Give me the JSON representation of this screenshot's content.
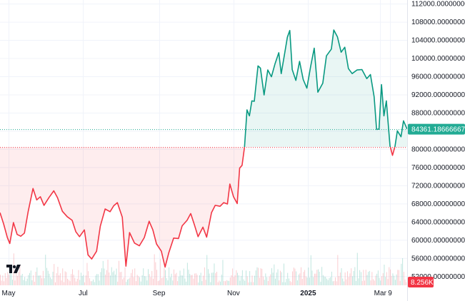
{
  "chart_data": {
    "type": "area",
    "style": "baseline",
    "baseline_value": 80420,
    "last_value": 84361.18666667,
    "last_value_label": "84361.18666667",
    "volume_label": "8.256K",
    "y_tick_labels": [
      "112000.00000000",
      "108000.00000000",
      "104000.00000000",
      "100000.00000000",
      "96000.00000000",
      "92000.00000000",
      "88000.00000000",
      "84000.00000000",
      "80000.00000000",
      "76000.00000000",
      "72000.00000000",
      "68000.00000000",
      "64000.00000000",
      "60000.00000000",
      "56000.00000000",
      "52000.00000000"
    ],
    "y_ticks": [
      112000,
      108000,
      104000,
      100000,
      96000,
      92000,
      88000,
      84000,
      80000,
      76000,
      72000,
      68000,
      64000,
      60000,
      56000,
      52000
    ],
    "ylim": [
      50000,
      112800
    ],
    "x_tick_labels": [
      {
        "label": "May",
        "date": "2024-05-01",
        "bold": false
      },
      {
        "label": "Jul",
        "date": "2024-07-01",
        "bold": false
      },
      {
        "label": "Sep",
        "date": "2024-09-01",
        "bold": false
      },
      {
        "label": "Nov",
        "date": "2024-11-01",
        "bold": false
      },
      {
        "label": "2025",
        "date": "2025-01-01",
        "bold": true
      },
      {
        "label": "Mar",
        "date": "2025-03-01",
        "bold": false
      },
      {
        "label": "9",
        "date": "2025-03-09",
        "bold": false
      }
    ],
    "xlim": [
      "2024-04-24",
      "2025-03-23"
    ],
    "series_points": [
      [
        "2024-04-24",
        66000
      ],
      [
        "2024-04-27",
        63500
      ],
      [
        "2024-04-30",
        60500
      ],
      [
        "2024-05-02",
        59200
      ],
      [
        "2024-05-05",
        63800
      ],
      [
        "2024-05-08",
        61200
      ],
      [
        "2024-05-11",
        60800
      ],
      [
        "2024-05-14",
        61500
      ],
      [
        "2024-05-17",
        66200
      ],
      [
        "2024-05-21",
        71300
      ],
      [
        "2024-05-24",
        68800
      ],
      [
        "2024-05-27",
        69500
      ],
      [
        "2024-05-30",
        67600
      ],
      [
        "2024-06-03",
        69300
      ],
      [
        "2024-06-07",
        70800
      ],
      [
        "2024-06-10",
        69300
      ],
      [
        "2024-06-14",
        66300
      ],
      [
        "2024-06-18",
        65100
      ],
      [
        "2024-06-22",
        64300
      ],
      [
        "2024-06-25",
        61800
      ],
      [
        "2024-06-28",
        60700
      ],
      [
        "2024-07-02",
        62200
      ],
      [
        "2024-07-05",
        56700
      ],
      [
        "2024-07-08",
        55800
      ],
      [
        "2024-07-12",
        57500
      ],
      [
        "2024-07-15",
        63000
      ],
      [
        "2024-07-19",
        66800
      ],
      [
        "2024-07-23",
        66200
      ],
      [
        "2024-07-26",
        67500
      ],
      [
        "2024-07-29",
        68200
      ],
      [
        "2024-08-02",
        65000
      ],
      [
        "2024-08-05",
        54200
      ],
      [
        "2024-08-08",
        61600
      ],
      [
        "2024-08-12",
        59300
      ],
      [
        "2024-08-16",
        58700
      ],
      [
        "2024-08-20",
        60500
      ],
      [
        "2024-08-24",
        64100
      ],
      [
        "2024-08-27",
        62200
      ],
      [
        "2024-08-30",
        59100
      ],
      [
        "2024-09-03",
        57500
      ],
      [
        "2024-09-06",
        54000
      ],
      [
        "2024-09-09",
        57100
      ],
      [
        "2024-09-13",
        60400
      ],
      [
        "2024-09-17",
        60300
      ],
      [
        "2024-09-20",
        63100
      ],
      [
        "2024-09-24",
        64300
      ],
      [
        "2024-09-27",
        65800
      ],
      [
        "2024-09-30",
        63300
      ],
      [
        "2024-10-03",
        60700
      ],
      [
        "2024-10-07",
        62800
      ],
      [
        "2024-10-10",
        60600
      ],
      [
        "2024-10-14",
        66000
      ],
      [
        "2024-10-17",
        67600
      ],
      [
        "2024-10-21",
        67400
      ],
      [
        "2024-10-24",
        68200
      ],
      [
        "2024-10-27",
        67900
      ],
      [
        "2024-10-29",
        72300
      ],
      [
        "2024-11-01",
        69500
      ],
      [
        "2024-11-04",
        68000
      ],
      [
        "2024-11-06",
        75800
      ],
      [
        "2024-11-08",
        76400
      ],
      [
        "2024-11-10",
        80400
      ],
      [
        "2024-11-12",
        88600
      ],
      [
        "2024-11-14",
        87300
      ],
      [
        "2024-11-16",
        90600
      ],
      [
        "2024-11-18",
        90500
      ],
      [
        "2024-11-21",
        98300
      ],
      [
        "2024-11-23",
        97800
      ],
      [
        "2024-11-26",
        91900
      ],
      [
        "2024-11-29",
        97400
      ],
      [
        "2024-12-02",
        95900
      ],
      [
        "2024-12-05",
        98800
      ],
      [
        "2024-12-08",
        101200
      ],
      [
        "2024-12-10",
        96600
      ],
      [
        "2024-12-13",
        101300
      ],
      [
        "2024-12-15",
        104600
      ],
      [
        "2024-12-17",
        106100
      ],
      [
        "2024-12-19",
        97500
      ],
      [
        "2024-12-22",
        95100
      ],
      [
        "2024-12-25",
        99300
      ],
      [
        "2024-12-28",
        95300
      ],
      [
        "2024-12-31",
        93400
      ],
      [
        "2025-01-03",
        98100
      ],
      [
        "2025-01-06",
        102200
      ],
      [
        "2025-01-09",
        92500
      ],
      [
        "2025-01-13",
        94500
      ],
      [
        "2025-01-16",
        100500
      ],
      [
        "2025-01-20",
        102000
      ],
      [
        "2025-01-22",
        106200
      ],
      [
        "2025-01-25",
        104700
      ],
      [
        "2025-01-28",
        101300
      ],
      [
        "2025-01-31",
        102400
      ],
      [
        "2025-02-03",
        97700
      ],
      [
        "2025-02-06",
        96600
      ],
      [
        "2025-02-10",
        97400
      ],
      [
        "2025-02-14",
        97500
      ],
      [
        "2025-02-18",
        95500
      ],
      [
        "2025-02-21",
        96400
      ],
      [
        "2025-02-24",
        91500
      ],
      [
        "2025-02-26",
        84300
      ],
      [
        "2025-02-28",
        84400
      ],
      [
        "2025-03-02",
        94200
      ],
      [
        "2025-03-04",
        87300
      ],
      [
        "2025-03-06",
        90600
      ],
      [
        "2025-03-09",
        80700
      ],
      [
        "2025-03-11",
        78600
      ],
      [
        "2025-03-13",
        80500
      ],
      [
        "2025-03-15",
        84000
      ],
      [
        "2025-03-18",
        82700
      ],
      [
        "2025-03-20",
        86200
      ],
      [
        "2025-03-23",
        84361
      ]
    ],
    "colors": {
      "up_line": "#089981",
      "down_line": "#f23645",
      "up_fill": "#089981",
      "down_fill": "#f23645",
      "last_label_bg": "#22ab94",
      "volume_label_bg": "#f23645",
      "grid": "#f0f3fa"
    },
    "grid": true,
    "legend": "none"
  }
}
